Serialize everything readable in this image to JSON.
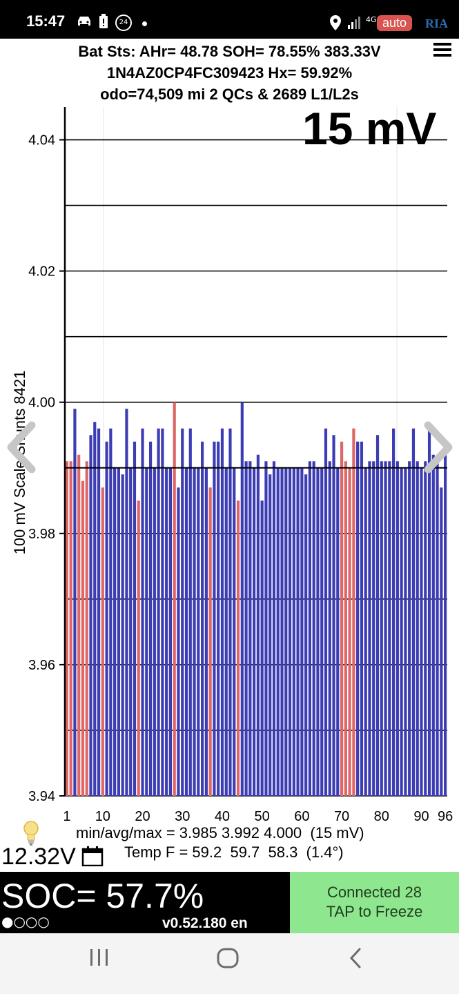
{
  "status_bar": {
    "time": "15:47",
    "icons": [
      "car-icon",
      "battery-alert-icon",
      "badge-24-icon",
      "dot-icon",
      "location-icon",
      "signal-icon",
      "4g-icon"
    ],
    "badge_text": "24",
    "network_label": "4G"
  },
  "watermark": {
    "auto": "auto",
    "ria": "RIA"
  },
  "header": {
    "line1": "Bat Sts: AHr= 48.78 SOH= 78.55% 383.33V",
    "line2": "1N4AZ0CP4FC309423   Hx= 59.92%",
    "line3": "odo=74,509 mi 2 QCs & 2689 L1/L2s"
  },
  "chart_overlay": {
    "range_label": "15 mV"
  },
  "chart_data": {
    "type": "bar",
    "ylabel": "100 mV Scale Shunts 8421",
    "ylim": [
      3.94,
      4.045
    ],
    "yticks": [
      "4.04",
      "4.02",
      "4.00",
      "3.98",
      "3.96",
      "3.94"
    ],
    "xticks": [
      "1",
      "10",
      "20",
      "30",
      "40",
      "50",
      "60",
      "70",
      "80",
      "90",
      "96"
    ],
    "grid": true,
    "colors": {
      "normal": "#3c3cb4",
      "shunt": "#dd6666"
    },
    "values": [
      3.991,
      3.991,
      3.999,
      3.992,
      3.988,
      3.991,
      3.995,
      3.997,
      3.996,
      3.987,
      3.994,
      3.996,
      3.99,
      3.99,
      3.989,
      3.999,
      3.99,
      3.994,
      3.985,
      3.996,
      3.99,
      3.994,
      3.99,
      3.996,
      3.996,
      3.99,
      3.99,
      4.0,
      3.987,
      3.996,
      3.99,
      3.996,
      3.99,
      3.99,
      3.994,
      3.99,
      3.987,
      3.994,
      3.994,
      3.996,
      3.99,
      3.996,
      3.99,
      3.985,
      4.0,
      3.991,
      3.991,
      3.99,
      3.992,
      3.985,
      3.991,
      3.989,
      3.991,
      3.99,
      3.99,
      3.99,
      3.99,
      3.99,
      3.99,
      3.99,
      3.989,
      3.991,
      3.991,
      3.99,
      3.99,
      3.996,
      3.991,
      3.995,
      3.99,
      3.994,
      3.991,
      3.99,
      3.996,
      3.994,
      3.994,
      3.99,
      3.991,
      3.991,
      3.995,
      3.991,
      3.991,
      3.991,
      3.996,
      3.991,
      3.99,
      3.99,
      3.991,
      3.996,
      3.991,
      3.99,
      3.991,
      3.996,
      3.992,
      3.991,
      3.987,
      3.992
    ],
    "shunted": [
      1,
      2,
      4,
      5,
      6,
      10,
      19,
      28,
      37,
      44,
      70,
      71,
      72,
      73
    ]
  },
  "stats": {
    "minavgmax": "min/avg/max = 3.985 3.992 4.000  (15 mV)",
    "temp": "Temp F = 59.2  59.7  58.3  (1.4°)"
  },
  "aux_voltage": "12.32V",
  "soc": {
    "text": "SOC= 57.7%",
    "dots": "●○○○",
    "version": "v0.52.180 en"
  },
  "connection": {
    "line1": "Connected 28",
    "line2": "TAP to Freeze"
  }
}
